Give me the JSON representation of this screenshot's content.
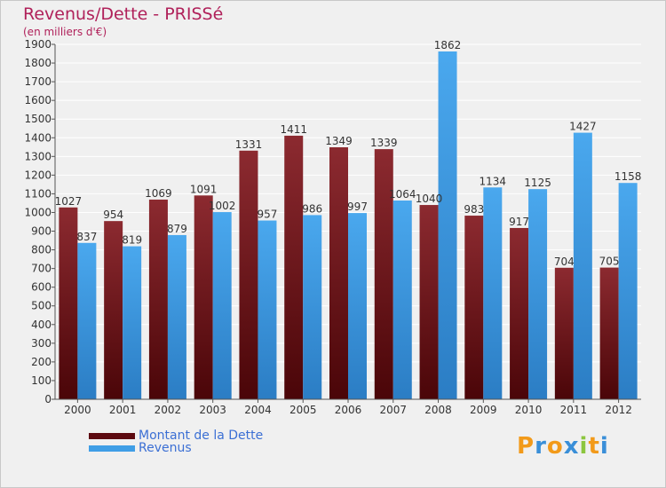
{
  "chart_data": {
    "type": "bar",
    "title": "Revenus/Dette - PRISSé",
    "subtitle": "(en milliers d'€)",
    "xlabel": "",
    "ylabel": "",
    "ylim": [
      0,
      1900
    ],
    "yticks": [
      0,
      100,
      200,
      300,
      400,
      500,
      600,
      700,
      800,
      900,
      1000,
      1100,
      1200,
      1300,
      1400,
      1500,
      1600,
      1700,
      1800,
      1900
    ],
    "grid": true,
    "legend_position": "bottom-left",
    "categories": [
      "2000",
      "2001",
      "2002",
      "2003",
      "2004",
      "2005",
      "2006",
      "2007",
      "2008",
      "2009",
      "2010",
      "2011",
      "2012"
    ],
    "series": [
      {
        "name": "Montant de la Dette",
        "color": "#7a1f24",
        "values": [
          1027,
          954,
          1069,
          1091,
          1331,
          1411,
          1349,
          1339,
          1040,
          983,
          917,
          704,
          705
        ]
      },
      {
        "name": "Revenus",
        "color": "#3f9ee6",
        "values": [
          837,
          819,
          879,
          1002,
          957,
          986,
          997,
          1064,
          1862,
          1134,
          1125,
          1427,
          1158
        ]
      }
    ]
  },
  "legend": {
    "items": [
      {
        "label": "Montant de la Dette",
        "color": "#5c0a10"
      },
      {
        "label": "Revenus",
        "color": "#3f9ee6"
      }
    ]
  },
  "logo": {
    "text": "Proxiti",
    "letters": [
      {
        "char": "P",
        "color": "#f29a1a"
      },
      {
        "char": "r",
        "color": "#3a8fd8"
      },
      {
        "char": "o",
        "color": "#f29a1a"
      },
      {
        "char": "x",
        "color": "#3a8fd8"
      },
      {
        "char": "i",
        "color": "#8cc63f"
      },
      {
        "char": "t",
        "color": "#f29a1a"
      },
      {
        "char": "i",
        "color": "#3a8fd8"
      }
    ]
  }
}
